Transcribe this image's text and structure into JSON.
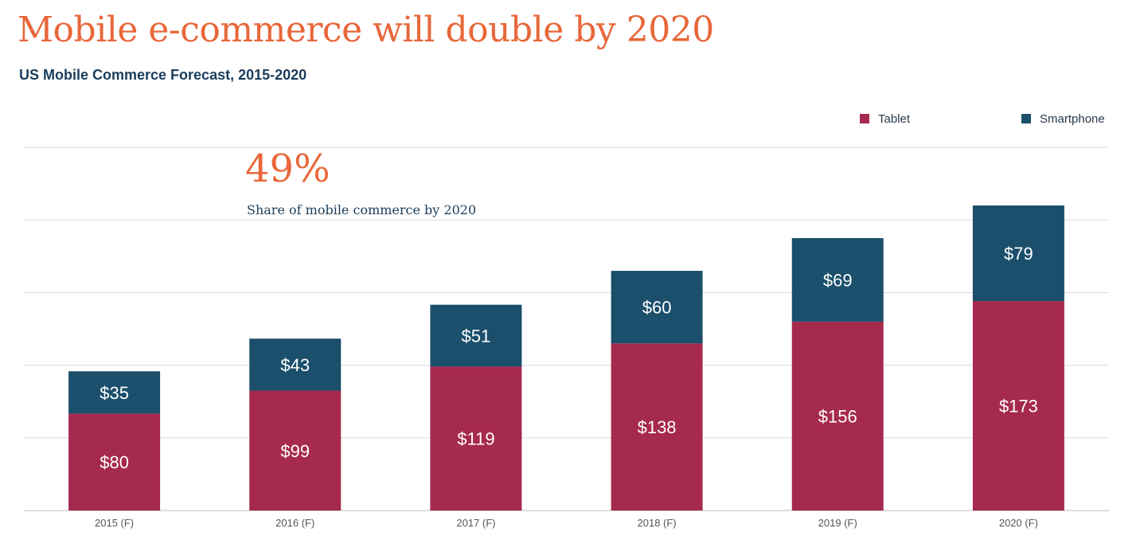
{
  "chart_data": {
    "type": "bar",
    "stacked": true,
    "title": "Mobile e-commerce will double by 2020",
    "subtitle": "US Mobile Commerce Forecast, 2015-2020",
    "categories": [
      "2015 (F)",
      "2016 (F)",
      "2017 (F)",
      "2018 (F)",
      "2019 (F)",
      "2020 (F)"
    ],
    "series": [
      {
        "name": "Tablet",
        "values": [
          80,
          99,
          119,
          138,
          156,
          173
        ],
        "labels": [
          "$80",
          "$99",
          "$119",
          "$138",
          "$156",
          "$173"
        ],
        "color": "#a6294e"
      },
      {
        "name": "Smartphone",
        "values": [
          35,
          43,
          51,
          60,
          69,
          79
        ],
        "labels": [
          "$35",
          "$43",
          "$51",
          "$60",
          "$69",
          "$79"
        ],
        "color": "#1b4f6c"
      }
    ],
    "ylim": [
      0,
      300
    ],
    "grid": true,
    "legend_position": "top-right",
    "annotation": {
      "value": "49%",
      "text": "Share of mobile commerce by 2020"
    }
  }
}
